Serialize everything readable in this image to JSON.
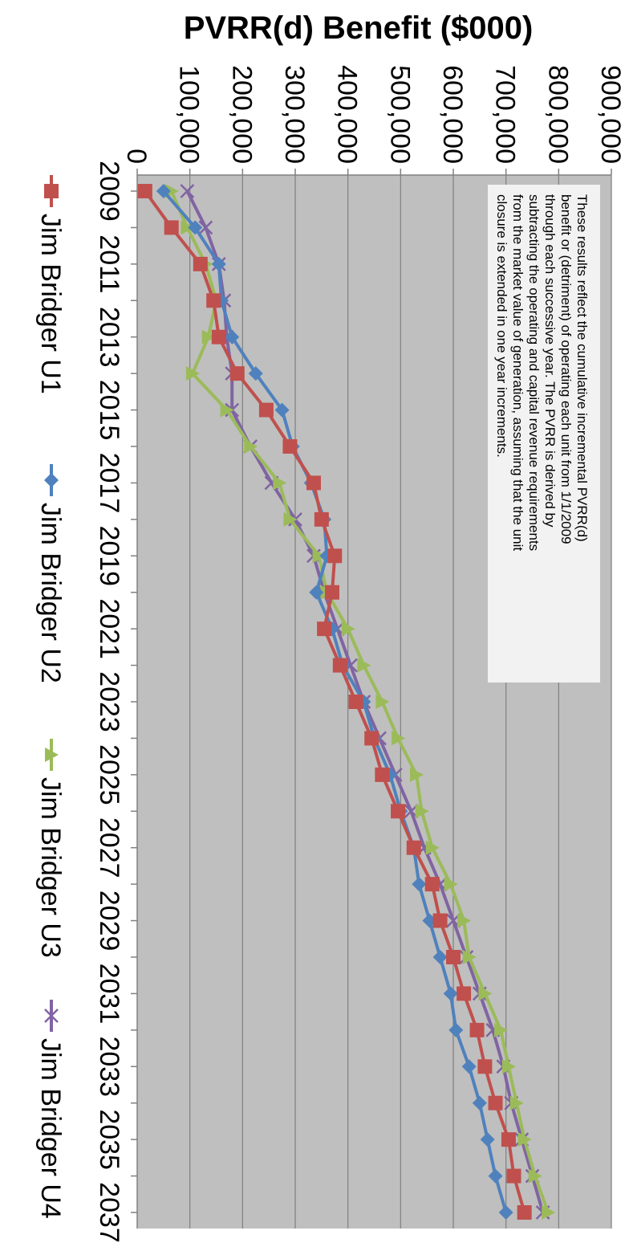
{
  "chart_data": {
    "type": "line",
    "title": "",
    "ylabel": "PVRR(d) Benefit ($000)",
    "xlabel": "",
    "ylim": [
      0,
      900000
    ],
    "y_ticks": [
      0,
      100000,
      200000,
      300000,
      400000,
      500000,
      600000,
      700000,
      800000,
      900000
    ],
    "y_tick_labels": [
      "0",
      "100,000",
      "200,000",
      "300,000",
      "400,000",
      "500,000",
      "600,000",
      "700,000",
      "800,000",
      "900,000"
    ],
    "x": [
      2009,
      2010,
      2011,
      2012,
      2013,
      2014,
      2015,
      2016,
      2017,
      2018,
      2019,
      2020,
      2021,
      2022,
      2023,
      2024,
      2025,
      2026,
      2027,
      2028,
      2029,
      2030,
      2031,
      2032,
      2033,
      2034,
      2035,
      2036,
      2037
    ],
    "x_tick_labels": [
      "2009",
      "2011",
      "2013",
      "2015",
      "2017",
      "2019",
      "2021",
      "2023",
      "2025",
      "2027",
      "2029",
      "2031",
      "2033",
      "2035",
      "2037"
    ],
    "x_tick_years": [
      2009,
      2011,
      2013,
      2015,
      2017,
      2019,
      2021,
      2023,
      2025,
      2027,
      2029,
      2031,
      2033,
      2035,
      2037
    ],
    "grid": true,
    "plot_background": "#bfbfbf",
    "orientation": "rotated 90 degrees clockwise",
    "legend_position": "bottom",
    "annotation": [
      "These results reflect the cumulative incremental PVRR(d)",
      "benefit or (detriment) of operating  each unit from 1/1/2009",
      "through each successive year.  The PVRR is derived by",
      "subtracting the operating and capital revenue requirements",
      "from the market value of generation, assuming that the unit",
      "closure is extended in one year increments."
    ],
    "series": [
      {
        "name": "Jim Bridger U1",
        "color": "#c0504d",
        "marker": "square",
        "values": [
          15000,
          65000,
          120000,
          145000,
          155000,
          190000,
          245000,
          290000,
          335000,
          350000,
          375000,
          370000,
          355000,
          385000,
          415000,
          445000,
          465000,
          495000,
          525000,
          560000,
          575000,
          600000,
          620000,
          645000,
          660000,
          680000,
          705000,
          715000,
          735000
        ]
      },
      {
        "name": "Jim Bridger U2",
        "color": "#4f81bd",
        "marker": "diamond",
        "values": [
          50000,
          110000,
          155000,
          160000,
          180000,
          225000,
          275000,
          295000,
          330000,
          355000,
          360000,
          340000,
          370000,
          390000,
          430000,
          450000,
          480000,
          500000,
          525000,
          535000,
          555000,
          575000,
          595000,
          605000,
          630000,
          650000,
          665000,
          680000,
          700000
        ]
      },
      {
        "name": "Jim Bridger U3",
        "color": "#9bbb59",
        "marker": "triangle",
        "values": [
          65000,
          95000,
          130000,
          150000,
          135000,
          105000,
          170000,
          215000,
          270000,
          290000,
          345000,
          360000,
          400000,
          430000,
          465000,
          495000,
          530000,
          540000,
          560000,
          595000,
          620000,
          630000,
          660000,
          690000,
          705000,
          720000,
          735000,
          755000,
          780000
        ]
      },
      {
        "name": "Jim Bridger U4",
        "color": "#8064a2",
        "marker": "x",
        "values": [
          95000,
          130000,
          155000,
          165000,
          170000,
          180000,
          180000,
          215000,
          255000,
          300000,
          335000,
          355000,
          380000,
          405000,
          430000,
          460000,
          490000,
          520000,
          545000,
          575000,
          600000,
          625000,
          650000,
          675000,
          695000,
          710000,
          730000,
          750000,
          770000
        ]
      }
    ]
  }
}
